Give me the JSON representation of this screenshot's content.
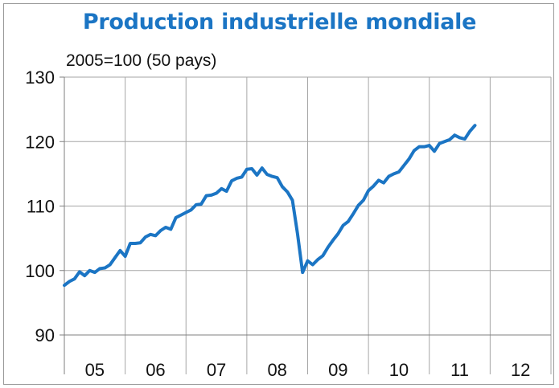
{
  "chart_data": {
    "type": "line",
    "title": "Production industrielle mondiale",
    "subtitle": "2005=100 (50 pays)",
    "xlabel": "",
    "ylabel": "",
    "ylim": [
      90,
      130
    ],
    "yticks": [
      "130",
      "120",
      "110",
      "100",
      "90"
    ],
    "xticks": [
      "05",
      "06",
      "07",
      "08",
      "09",
      "10",
      "11",
      "12"
    ],
    "grid": true,
    "line_color": "#1b75c4",
    "series": [
      {
        "values": [
          97.7,
          98.3,
          98.7,
          99.8,
          99.2,
          100.0,
          99.7,
          100.3,
          100.4,
          100.9,
          102.0,
          103.1,
          102.2,
          104.2,
          104.2,
          104.3,
          105.2,
          105.6,
          105.4,
          106.2,
          106.7,
          106.4,
          108.2,
          108.6,
          109.0,
          109.4,
          110.2,
          110.3,
          111.6,
          111.7,
          112.0,
          112.7,
          112.3,
          113.9,
          114.3,
          114.5,
          115.7,
          115.8,
          114.8,
          115.9,
          114.9,
          114.6,
          114.4,
          113.0,
          112.2,
          110.9,
          105.7,
          99.7,
          101.5,
          100.9,
          101.7,
          102.3,
          103.6,
          104.7,
          105.7,
          107.0,
          107.6,
          108.8,
          110.1,
          110.9,
          112.4,
          113.1,
          114.0,
          113.6,
          114.6,
          115.0,
          115.3,
          116.3,
          117.3,
          118.6,
          119.2,
          119.2,
          119.4,
          118.5,
          119.7,
          120.0,
          120.3,
          121.0,
          120.6,
          120.4,
          121.6,
          122.5
        ]
      }
    ]
  }
}
